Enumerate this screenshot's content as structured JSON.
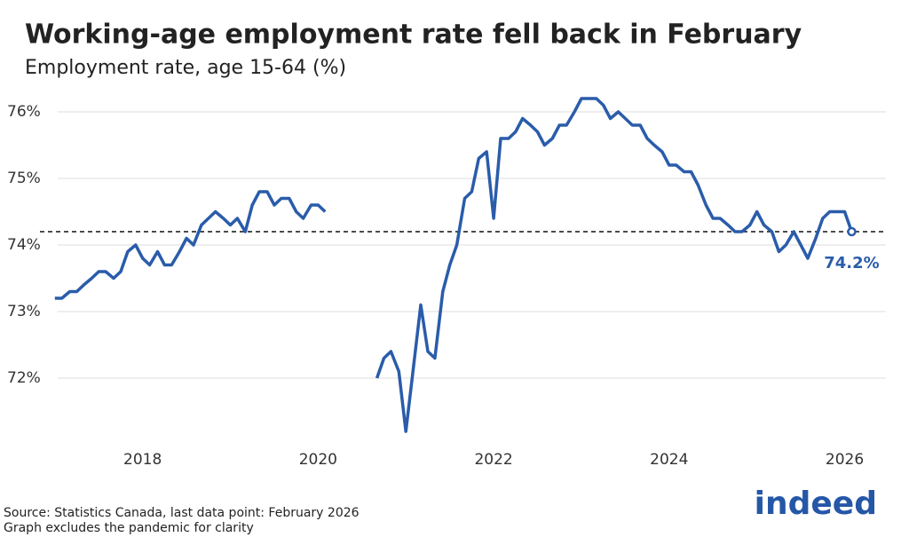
{
  "chart_data": {
    "type": "line",
    "title": "Working-age employment rate fell back in February",
    "subtitle": "Employment rate, age 15-64 (%)",
    "source": "Source: Statistics Canada, last data point: February 2026",
    "note": "Graph excludes the pandemic for clarity",
    "logo": "indeed",
    "x": [
      2017,
      2017.08,
      2017.17,
      2017.25,
      2017.33,
      2017.42,
      2017.5,
      2017.58,
      2017.67,
      2017.75,
      2017.83,
      2017.92,
      2018,
      2018.08,
      2018.17,
      2018.25,
      2018.33,
      2018.42,
      2018.5,
      2018.58,
      2018.67,
      2018.75,
      2018.83,
      2018.92,
      2019,
      2019.08,
      2019.17,
      2019.25,
      2019.33,
      2019.42,
      2019.5,
      2019.58,
      2019.67,
      2019.75,
      2019.83,
      2019.92,
      2020,
      2020.08,
      2020.17,
      2020.25,
      2020.33,
      2020.42,
      2020.5,
      2020.58,
      2020.67,
      2020.75,
      2020.83,
      2020.92,
      2021,
      2021.08,
      2021.17,
      2021.25,
      2021.33,
      2021.42,
      2021.5,
      2021.58,
      2021.67,
      2021.75,
      2021.83,
      2021.92,
      2022,
      2022.08,
      2022.17,
      2022.25,
      2022.33,
      2022.42,
      2022.5,
      2022.58,
      2022.67,
      2022.75,
      2022.83,
      2022.92,
      2023,
      2023.08,
      2023.17,
      2023.25,
      2023.33,
      2023.42,
      2023.5,
      2023.58,
      2023.67,
      2023.75,
      2023.83,
      2023.92,
      2024,
      2024.08,
      2024.17,
      2024.25,
      2024.33,
      2024.42,
      2024.5,
      2024.58,
      2024.67,
      2024.75,
      2024.83,
      2024.92,
      2025,
      2025.08,
      2025.17,
      2025.25,
      2025.33,
      2025.42,
      2025.5,
      2025.58,
      2025.67,
      2025.75,
      2025.83,
      2025.92,
      2026,
      2026.08
    ],
    "series": [
      {
        "name": "Employment rate",
        "color": "#2a5caa",
        "values": [
          73.2,
          73.2,
          73.3,
          73.3,
          73.4,
          73.5,
          73.6,
          73.6,
          73.5,
          73.6,
          73.9,
          74.0,
          73.8,
          73.7,
          73.9,
          73.7,
          73.7,
          73.9,
          74.1,
          74.0,
          74.3,
          74.4,
          74.5,
          74.4,
          74.3,
          74.4,
          74.2,
          74.6,
          74.8,
          74.8,
          74.6,
          74.7,
          74.7,
          74.5,
          74.4,
          74.6,
          74.6,
          74.5,
          null,
          null,
          null,
          null,
          null,
          null,
          72.0,
          72.3,
          72.4,
          72.1,
          71.2,
          72.1,
          73.1,
          72.4,
          72.3,
          73.3,
          73.7,
          74.0,
          74.7,
          74.8,
          75.3,
          75.4,
          74.4,
          75.6,
          75.6,
          75.7,
          75.9,
          75.8,
          75.7,
          75.5,
          75.6,
          75.8,
          75.8,
          76.0,
          76.2,
          76.2,
          76.2,
          76.1,
          75.9,
          76.0,
          75.9,
          75.8,
          75.8,
          75.6,
          75.5,
          75.4,
          75.2,
          75.2,
          75.1,
          75.1,
          74.9,
          74.6,
          74.4,
          74.4,
          74.3,
          74.2,
          74.2,
          74.3,
          74.5,
          74.3,
          74.2,
          73.9,
          74.0,
          74.2,
          74.0,
          73.8,
          74.1,
          74.4,
          74.5,
          74.5,
          74.5,
          74.2
        ]
      }
    ],
    "annotation": {
      "value": 74.2,
      "label": "74.2%"
    },
    "xlim": [
      2016.83,
      2026.47
    ],
    "xticks": [
      2018,
      2020,
      2022,
      2024,
      2026
    ],
    "ylim": [
      71,
      76.4
    ],
    "yticks": [
      {
        "value": 72,
        "label": "72%"
      },
      {
        "value": 73,
        "label": "73%"
      },
      {
        "value": 74,
        "label": "74%"
      },
      {
        "value": 75,
        "label": "75%"
      },
      {
        "value": 76,
        "label": "76%"
      }
    ],
    "grid": true
  }
}
